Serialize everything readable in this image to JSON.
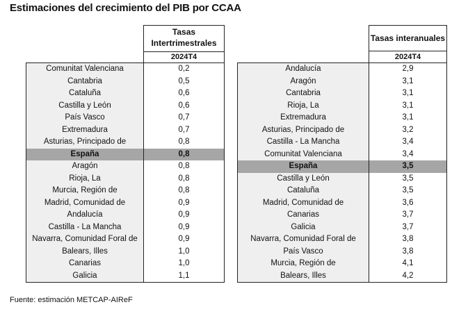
{
  "title": "Estimaciones del crecimiento del PIB por CCAA",
  "source": "Fuente: estimación METCAP-AIReF",
  "highlight_color": "#a6a6a6",
  "chart_data": [
    {
      "type": "table",
      "header": [
        "Tasas",
        "Intertrimestrales"
      ],
      "period": "2024T4",
      "rows": [
        {
          "name": "Comunitat Valenciana",
          "value": "0,2"
        },
        {
          "name": "Cantabria",
          "value": "0,5"
        },
        {
          "name": "Cataluña",
          "value": "0,6"
        },
        {
          "name": "Castilla y León",
          "value": "0,6"
        },
        {
          "name": "País Vasco",
          "value": "0,7"
        },
        {
          "name": "Extremadura",
          "value": "0,7"
        },
        {
          "name": "Asturias, Principado de",
          "value": "0,8"
        },
        {
          "name": "España",
          "value": "0,8",
          "highlight": true
        },
        {
          "name": "Aragón",
          "value": "0,8"
        },
        {
          "name": "Rioja, La",
          "value": "0,8"
        },
        {
          "name": "Murcia, Región de",
          "value": "0,8"
        },
        {
          "name": "Madrid, Comunidad de",
          "value": "0,9"
        },
        {
          "name": "Andalucía",
          "value": "0,9"
        },
        {
          "name": "Castilla - La Mancha",
          "value": "0,9"
        },
        {
          "name": "Navarra, Comunidad Foral de",
          "value": "0,9"
        },
        {
          "name": "Balears, Illes",
          "value": "1,0"
        },
        {
          "name": "Canarias",
          "value": "1,0"
        },
        {
          "name": "Galicia",
          "value": "1,1"
        }
      ]
    },
    {
      "type": "table",
      "header": [
        "Tasas interanuales"
      ],
      "period": "2024T4",
      "rows": [
        {
          "name": "Andalucía",
          "value": "2,9"
        },
        {
          "name": "Aragón",
          "value": "3,1"
        },
        {
          "name": "Cantabria",
          "value": "3,1"
        },
        {
          "name": "Rioja, La",
          "value": "3,1"
        },
        {
          "name": "Extremadura",
          "value": "3,1"
        },
        {
          "name": "Asturias, Principado de",
          "value": "3,2"
        },
        {
          "name": "Castilla - La Mancha",
          "value": "3,4"
        },
        {
          "name": "Comunitat Valenciana",
          "value": "3,4"
        },
        {
          "name": "España",
          "value": "3,5",
          "highlight": true
        },
        {
          "name": "Castilla y León",
          "value": "3,5"
        },
        {
          "name": "Cataluña",
          "value": "3,5"
        },
        {
          "name": "Madrid, Comunidad de",
          "value": "3,6"
        },
        {
          "name": "Canarias",
          "value": "3,7"
        },
        {
          "name": "Galicia",
          "value": "3,7"
        },
        {
          "name": "Navarra, Comunidad Foral de",
          "value": "3,8"
        },
        {
          "name": "País Vasco",
          "value": "3,8"
        },
        {
          "name": "Murcia, Región de",
          "value": "4,1"
        },
        {
          "name": "Balears, Illes",
          "value": "4,2"
        }
      ]
    }
  ]
}
